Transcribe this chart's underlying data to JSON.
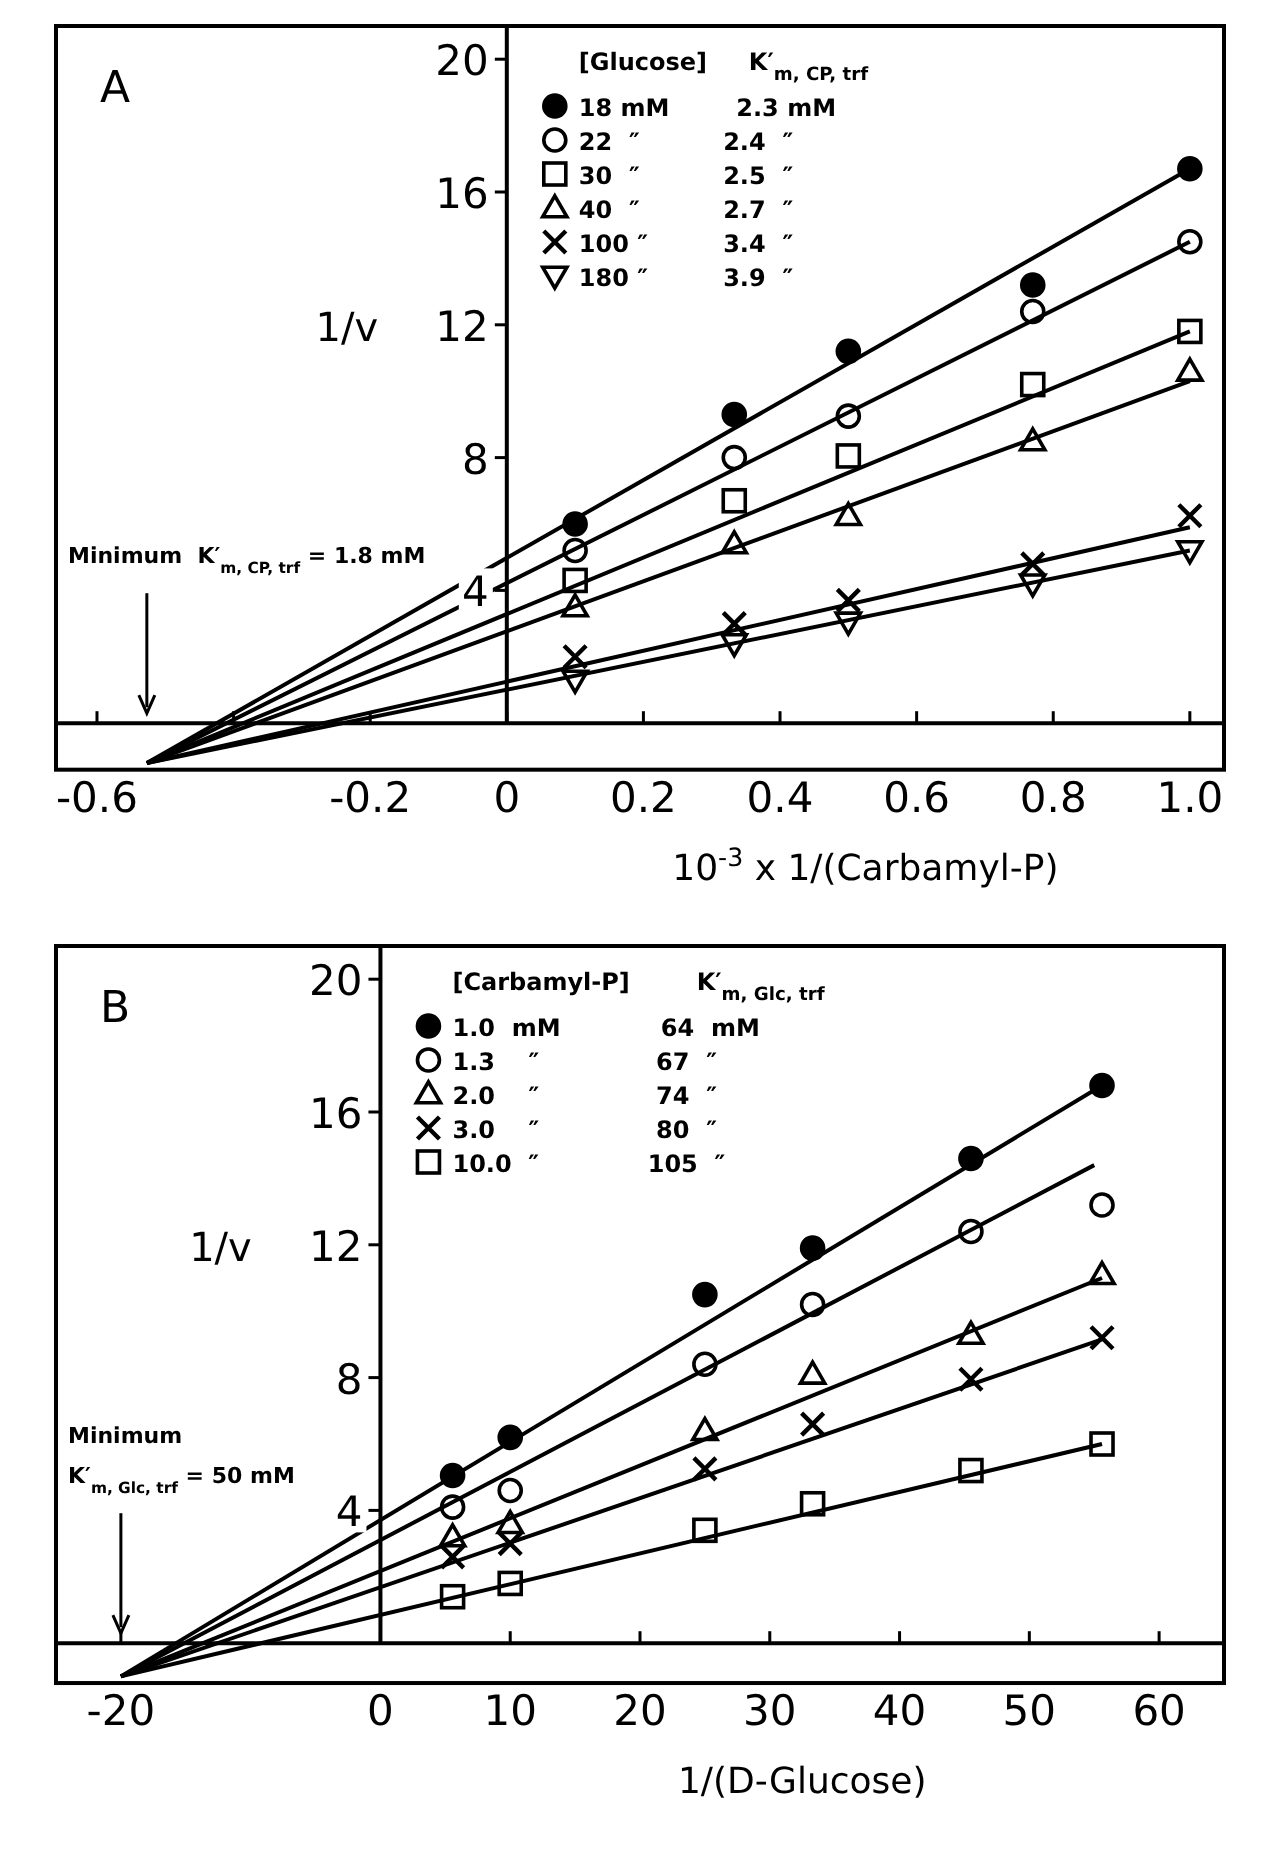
{
  "chart_data": [
    {
      "type": "scatter",
      "title": "A",
      "xlabel": "10$^{-3}$ x 1/(Carbamyl-P)",
      "ylabel": "1/v",
      "legend_title": "[Glucose]     K′$_{m, CP, trf}$",
      "legend": "top",
      "grid": false,
      "xlim": [
        -0.66,
        1.05
      ],
      "ylim": [
        -1.4,
        21
      ],
      "xticks": [
        -0.6,
        {
          "value": -0.4,
          "label": null
        },
        -0.2,
        0,
        0.2,
        0.4,
        0.6,
        0.8,
        {
          "value": 1,
          "label": "1.0"
        }
      ],
      "yticks": [
        4,
        8,
        12,
        16,
        20
      ],
      "annotations": [
        "Minimum  K′$_{m, CP, trf}$ = 1.8 mM"
      ],
      "series": [
        {
          "name": "18 mM        2.3 mM",
          "color": "#000000",
          "marker": "circle",
          "x": [
            0.1,
            0.333,
            0.5,
            0.77,
            1.0
          ],
          "values": [
            6.0,
            9.3,
            11.2,
            13.2,
            16.7
          ]
        },
        {
          "name": "22  ″          2.4  ″",
          "color": "#000000",
          "marker": "circle-open",
          "x": [
            0.1,
            0.333,
            0.5,
            0.77,
            1.0
          ],
          "values": [
            5.2,
            8.0,
            9.25,
            12.4,
            14.5
          ]
        },
        {
          "name": "30  ″          2.5  ″",
          "color": "#000000",
          "marker": "square",
          "x": [
            0.1,
            0.333,
            0.5,
            0.77,
            1.0
          ],
          "values": [
            4.3,
            6.7,
            8.05,
            10.2,
            11.8
          ]
        },
        {
          "name": "40  ″          2.7  ″",
          "color": "#000000",
          "marker": "triangle",
          "x": [
            0.1,
            0.333,
            0.5,
            0.77,
            1.0
          ],
          "values": [
            3.5,
            5.4,
            6.25,
            8.5,
            10.6
          ]
        },
        {
          "name": "100 ″         3.4  ″",
          "color": "#000000",
          "marker": "cross",
          "x": [
            0.1,
            0.333,
            0.5,
            0.77,
            1.0
          ],
          "values": [
            2.0,
            3.0,
            3.7,
            4.8,
            6.25
          ]
        },
        {
          "name": "180 ″         3.9  ″",
          "color": "#000000",
          "marker": "triangle-down",
          "x": [
            0.1,
            0.333,
            0.5,
            0.77,
            1.0
          ],
          "values": [
            1.3,
            2.4,
            3.05,
            4.2,
            5.2
          ]
        },
        {
          "type": "line",
          "color": "#000000",
          "marker": "none",
          "x": [
            -0.527,
            1.0
          ],
          "values": [
            -1.2,
            16.7
          ]
        },
        {
          "type": "line",
          "color": "#000000",
          "marker": "none",
          "x": [
            -0.527,
            1.0
          ],
          "values": [
            -1.2,
            14.5
          ]
        },
        {
          "type": "line",
          "color": "#000000",
          "marker": "none",
          "x": [
            -0.527,
            1.0
          ],
          "values": [
            -1.2,
            11.8
          ]
        },
        {
          "type": "line",
          "color": "#000000",
          "marker": "none",
          "x": [
            -0.527,
            1.0
          ],
          "values": [
            -1.2,
            10.3
          ]
        },
        {
          "type": "line",
          "color": "#000000",
          "marker": "none",
          "x": [
            -0.527,
            1.0
          ],
          "values": [
            -1.2,
            5.9
          ]
        },
        {
          "type": "line",
          "color": "#000000",
          "marker": "none",
          "x": [
            -0.527,
            1.0
          ],
          "values": [
            -1.2,
            5.2
          ]
        }
      ]
    },
    {
      "type": "scatter",
      "title": "B",
      "xlabel": "1/(D-Glucose)",
      "ylabel": "1/v",
      "legend_title": "[Carbamyl-P]        K′$_{m, Glc, trf}$",
      "legend": "top",
      "grid": false,
      "xlim": [
        -25,
        65
      ],
      "ylim": [
        -1.2,
        21
      ],
      "xticks": [
        -20,
        0,
        10,
        20,
        30,
        40,
        50,
        60
      ],
      "yticks": [
        4,
        8,
        12,
        16,
        20
      ],
      "annotations": [
        "Minimum\nK′$_{m, Glc, trf}$ = 50 mM"
      ],
      "series": [
        {
          "name": "1.0  mM            64  mM",
          "color": "#000000",
          "marker": "circle",
          "x": [
            5.56,
            10,
            25,
            33.3,
            45.5,
            55.6
          ],
          "values": [
            5.05,
            6.2,
            10.5,
            11.9,
            14.6,
            16.8
          ]
        },
        {
          "name": "1.3    ″              67  ″",
          "color": "#000000",
          "marker": "circle-open",
          "x": [
            5.56,
            10,
            25,
            33.3,
            45.5,
            55.6
          ],
          "values": [
            4.1,
            4.6,
            8.4,
            10.2,
            12.4,
            13.2
          ]
        },
        {
          "name": "2.0    ″              74  ″",
          "color": "#000000",
          "marker": "triangle",
          "x": [
            5.56,
            10,
            25,
            33.3,
            45.5,
            55.6
          ],
          "values": [
            3.2,
            3.6,
            6.4,
            8.1,
            9.3,
            11.1
          ]
        },
        {
          "name": "3.0    ″              80  ″",
          "color": "#000000",
          "marker": "cross",
          "x": [
            5.56,
            10,
            25,
            33.3,
            45.5,
            55.6
          ],
          "values": [
            2.6,
            3.0,
            5.25,
            6.6,
            7.95,
            9.2
          ]
        },
        {
          "name": "10.0  ″             105  ″",
          "color": "#000000",
          "marker": "square",
          "x": [
            5.56,
            10,
            25,
            33.3,
            45.5,
            55.6
          ],
          "values": [
            1.4,
            1.8,
            3.4,
            4.2,
            5.2,
            6.0
          ]
        },
        {
          "type": "line",
          "color": "#000000",
          "marker": "none",
          "x": [
            -20,
            55.6
          ],
          "values": [
            -1.0,
            16.8
          ]
        },
        {
          "type": "line",
          "color": "#000000",
          "marker": "none",
          "x": [
            -20,
            55.0
          ],
          "values": [
            -1.0,
            14.4
          ]
        },
        {
          "type": "line",
          "color": "#000000",
          "marker": "none",
          "x": [
            -20,
            55.6
          ],
          "values": [
            -1.0,
            11.0
          ]
        },
        {
          "type": "line",
          "color": "#000000",
          "marker": "none",
          "x": [
            -20,
            55.6
          ],
          "values": [
            -1.0,
            9.15
          ]
        },
        {
          "type": "line",
          "color": "#000000",
          "marker": "none",
          "x": [
            -20,
            55.6
          ],
          "values": [
            -1.0,
            6.0
          ]
        }
      ]
    }
  ]
}
